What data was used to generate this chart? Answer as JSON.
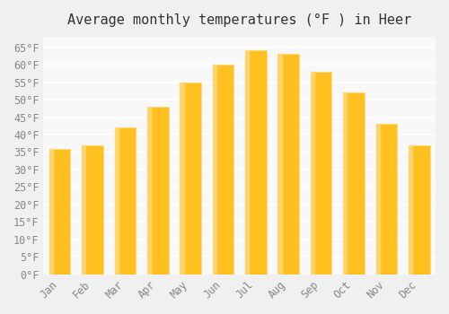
{
  "title": "Average monthly temperatures (°F ) in Heer",
  "months": [
    "Jan",
    "Feb",
    "Mar",
    "Apr",
    "May",
    "Jun",
    "Jul",
    "Aug",
    "Sep",
    "Oct",
    "Nov",
    "Dec"
  ],
  "values": [
    36,
    37,
    42,
    48,
    55,
    60,
    64,
    63,
    58,
    52,
    43,
    37
  ],
  "bar_color_main": "#FFC020",
  "bar_color_edge": "#FFD878",
  "background_color": "#F0F0F0",
  "plot_bg_color": "#F8F8F8",
  "grid_color": "#FFFFFF",
  "ylim": [
    0,
    68
  ],
  "yticks": [
    0,
    5,
    10,
    15,
    20,
    25,
    30,
    35,
    40,
    45,
    50,
    55,
    60,
    65
  ],
  "title_fontsize": 11,
  "tick_fontsize": 8.5,
  "font_family": "monospace"
}
